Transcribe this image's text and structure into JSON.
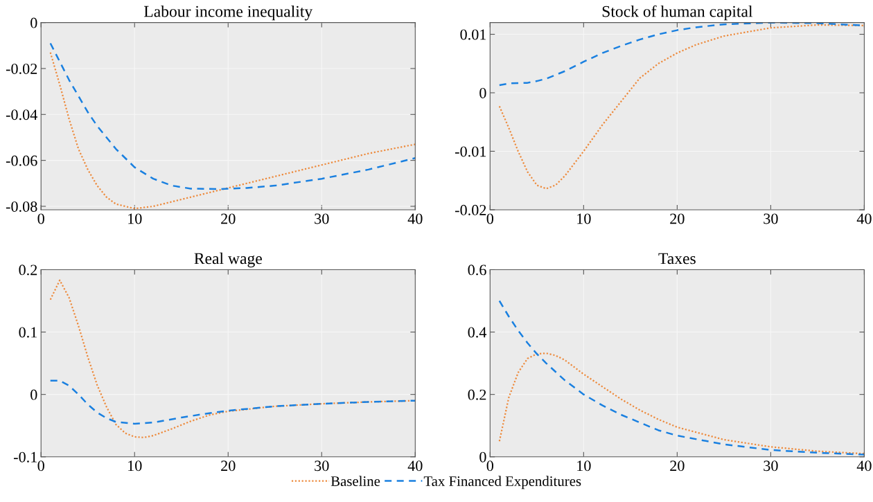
{
  "chart_data": [
    {
      "type": "line",
      "title": "Labour income inequality",
      "xlim": [
        0,
        40
      ],
      "xticks": [
        0,
        10,
        20,
        30,
        40
      ],
      "ylim": [
        -0.0815,
        0
      ],
      "yticks": [
        -0.08,
        -0.06,
        -0.04,
        -0.02,
        0
      ],
      "grid": true,
      "legend": "bottom",
      "series": [
        {
          "name": "Baseline",
          "color": "#ed8a3c",
          "line_style": "dotted",
          "x": [
            1,
            2,
            3,
            4,
            5,
            6,
            7,
            8,
            10,
            12,
            15,
            20,
            25,
            30,
            35,
            40
          ],
          "values": [
            -0.013,
            -0.027,
            -0.042,
            -0.055,
            -0.064,
            -0.071,
            -0.076,
            -0.079,
            -0.081,
            -0.08,
            -0.077,
            -0.072,
            -0.067,
            -0.062,
            -0.057,
            -0.053
          ]
        },
        {
          "name": "Tax Financed Expenditures",
          "color": "#1a80e0",
          "line_style": "dashed",
          "x": [
            1,
            2,
            3,
            4,
            5,
            6,
            7,
            8,
            10,
            12,
            14,
            16,
            19,
            22,
            25,
            30,
            35,
            40
          ],
          "values": [
            -0.009,
            -0.017,
            -0.025,
            -0.032,
            -0.039,
            -0.045,
            -0.05,
            -0.055,
            -0.063,
            -0.068,
            -0.071,
            -0.0723,
            -0.0725,
            -0.072,
            -0.071,
            -0.068,
            -0.064,
            -0.059
          ]
        }
      ]
    },
    {
      "type": "line",
      "title": "Stock of human capital",
      "xlim": [
        0,
        40
      ],
      "xticks": [
        0,
        10,
        20,
        30,
        40
      ],
      "ylim": [
        -0.02,
        0.012
      ],
      "yticks": [
        -0.02,
        -0.01,
        0,
        0.01
      ],
      "grid": true,
      "series": [
        {
          "color": "#ed8a3c",
          "line_style": "dotted",
          "x": [
            1,
            2,
            3,
            4,
            5,
            6,
            7,
            8,
            10,
            12,
            14,
            16,
            18,
            20,
            22,
            25,
            30,
            35,
            40
          ],
          "values": [
            -0.0023,
            -0.006,
            -0.01,
            -0.0135,
            -0.0158,
            -0.0164,
            -0.0158,
            -0.0142,
            -0.01,
            -0.0055,
            -0.0015,
            0.0025,
            0.005,
            0.0068,
            0.0082,
            0.0097,
            0.0111,
            0.0116,
            0.0115
          ]
        },
        {
          "color": "#1a80e0",
          "line_style": "dashed",
          "x": [
            1,
            2,
            4,
            5,
            6,
            8,
            10,
            12,
            14,
            16,
            18,
            20,
            22,
            25,
            30,
            35,
            40
          ],
          "values": [
            0.0013,
            0.0016,
            0.0017,
            0.002,
            0.0024,
            0.0037,
            0.0053,
            0.0068,
            0.008,
            0.0091,
            0.01,
            0.0107,
            0.0112,
            0.0117,
            0.012,
            0.0119,
            0.0115
          ]
        }
      ]
    },
    {
      "type": "line",
      "title": "Real wage",
      "xlim": [
        0,
        40
      ],
      "xticks": [
        0,
        10,
        20,
        30,
        40
      ],
      "ylim": [
        -0.1,
        0.2
      ],
      "yticks": [
        -0.1,
        0,
        0.1,
        0.2
      ],
      "grid": true,
      "series": [
        {
          "color": "#ed8a3c",
          "line_style": "dotted",
          "x": [
            1,
            2,
            3,
            4,
            5,
            6,
            7,
            8,
            9,
            10,
            11,
            12,
            14,
            16,
            18,
            20,
            25,
            30,
            35,
            40
          ],
          "values": [
            0.152,
            0.183,
            0.155,
            0.11,
            0.06,
            0.015,
            -0.02,
            -0.048,
            -0.062,
            -0.068,
            -0.069,
            -0.066,
            -0.055,
            -0.043,
            -0.033,
            -0.027,
            -0.019,
            -0.015,
            -0.012,
            -0.01
          ]
        },
        {
          "color": "#1a80e0",
          "line_style": "dashed",
          "x": [
            1,
            2,
            3,
            4,
            5,
            6,
            7,
            8,
            10,
            12,
            15,
            18,
            20,
            25,
            30,
            35,
            40
          ],
          "values": [
            0.022,
            0.022,
            0.014,
            0.0,
            -0.016,
            -0.029,
            -0.038,
            -0.044,
            -0.047,
            -0.045,
            -0.037,
            -0.03,
            -0.026,
            -0.019,
            -0.015,
            -0.012,
            -0.01
          ]
        }
      ]
    },
    {
      "type": "line",
      "title": "Taxes",
      "xlim": [
        0,
        40
      ],
      "xticks": [
        0,
        10,
        20,
        30,
        40
      ],
      "ylim": [
        0,
        0.6
      ],
      "yticks": [
        0,
        0.2,
        0.4,
        0.6
      ],
      "grid": true,
      "series": [
        {
          "color": "#ed8a3c",
          "line_style": "dotted",
          "x": [
            1,
            2,
            3,
            4,
            5,
            6,
            7,
            8,
            10,
            12,
            14,
            16,
            18,
            20,
            25,
            30,
            35,
            40
          ],
          "values": [
            0.05,
            0.19,
            0.27,
            0.315,
            0.33,
            0.332,
            0.325,
            0.31,
            0.265,
            0.225,
            0.185,
            0.15,
            0.12,
            0.095,
            0.055,
            0.032,
            0.018,
            0.01
          ]
        },
        {
          "color": "#1a80e0",
          "line_style": "dashed",
          "x": [
            1,
            2,
            3,
            4,
            5,
            6,
            8,
            10,
            12,
            14,
            16,
            18,
            20,
            25,
            30,
            35,
            40
          ],
          "values": [
            0.5,
            0.45,
            0.405,
            0.365,
            0.33,
            0.3,
            0.245,
            0.2,
            0.165,
            0.135,
            0.11,
            0.085,
            0.068,
            0.04,
            0.022,
            0.013,
            0.007
          ]
        }
      ]
    }
  ]
}
